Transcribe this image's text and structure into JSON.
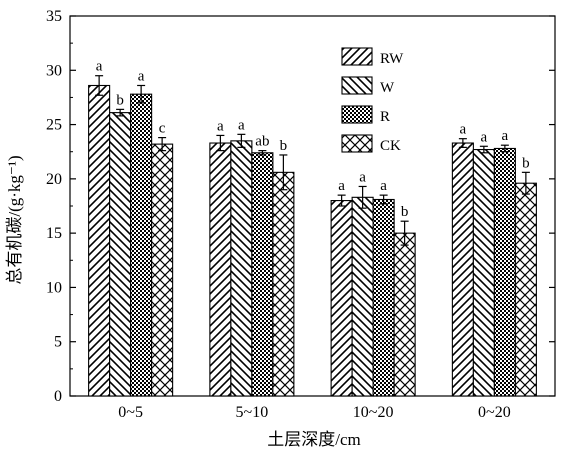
{
  "chart_data": {
    "type": "bar",
    "xlabel": "土层深度/cm",
    "ylabel": "总有机碳/(g·kg⁻¹)",
    "ylim": [
      0,
      35
    ],
    "yticks": [
      0,
      5,
      10,
      15,
      20,
      25,
      30,
      35
    ],
    "categories": [
      "0~5",
      "5~10",
      "10~20",
      "0~20"
    ],
    "legend_position": "top-right",
    "series": [
      {
        "name": "RW",
        "pattern": "diag-forward",
        "values": [
          28.6,
          23.3,
          18.0,
          23.3
        ],
        "errors": [
          0.9,
          0.7,
          0.5,
          0.4
        ],
        "labels": [
          "a",
          "a",
          "a",
          "a"
        ]
      },
      {
        "name": "W",
        "pattern": "diag-backward",
        "values": [
          26.1,
          23.5,
          18.3,
          22.7
        ],
        "errors": [
          0.3,
          0.6,
          1.0,
          0.3
        ],
        "labels": [
          "b",
          "a",
          "a",
          "a"
        ]
      },
      {
        "name": "R",
        "pattern": "dense-checker",
        "values": [
          27.8,
          22.4,
          18.1,
          22.8
        ],
        "errors": [
          0.8,
          0.2,
          0.4,
          0.3
        ],
        "labels": [
          "a",
          "ab",
          "a",
          "a"
        ]
      },
      {
        "name": "CK",
        "pattern": "crosshatch",
        "values": [
          23.2,
          20.6,
          15.0,
          19.6
        ],
        "errors": [
          0.6,
          1.6,
          1.1,
          1.0
        ],
        "labels": [
          "c",
          "b",
          "b",
          "b"
        ]
      }
    ]
  }
}
